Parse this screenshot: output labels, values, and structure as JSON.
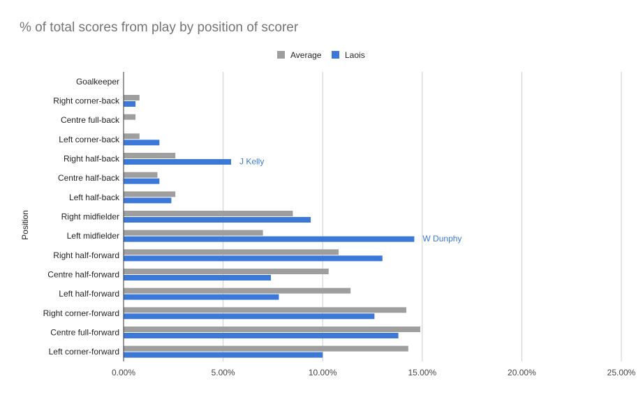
{
  "chart_data": {
    "type": "bar",
    "orientation": "horizontal",
    "title": "% of total scores from play by position of scorer",
    "ylabel": "Position",
    "xlabel": "",
    "xlim": [
      0,
      25
    ],
    "xticks": [
      0,
      5,
      10,
      15,
      20,
      25
    ],
    "xtick_labels": [
      "0.00%",
      "5.00%",
      "10.00%",
      "15.00%",
      "20.00%",
      "25.00%"
    ],
    "grid": true,
    "legend_position": "top",
    "categories": [
      "Goalkeeper",
      "Right corner-back",
      "Centre full-back",
      "Left corner-back",
      "Right half-back",
      "Centre half-back",
      "Left half-back",
      "Right midfielder",
      "Left midfielder",
      "Right half-forward",
      "Centre half-forward",
      "Left half-forward",
      "Right corner-forward",
      "Centre full-forward",
      "Left corner-forward"
    ],
    "series": [
      {
        "name": "Average",
        "color": "#9e9e9e",
        "values": [
          0,
          0.8,
          0.6,
          0.8,
          2.6,
          1.7,
          2.6,
          8.5,
          7.0,
          10.8,
          10.3,
          11.4,
          14.2,
          14.9,
          14.3
        ]
      },
      {
        "name": "Laois",
        "color": "#3c78d8",
        "values": [
          0,
          0.6,
          0,
          1.8,
          5.4,
          1.8,
          2.4,
          9.4,
          14.6,
          13.0,
          7.4,
          7.8,
          12.6,
          13.8,
          10.0
        ]
      }
    ],
    "annotations": [
      {
        "text": "J Kelly",
        "category": "Right half-back",
        "series": "Laois",
        "color": "#3c78d8"
      },
      {
        "text": "W Dunphy",
        "category": "Left midfielder",
        "series": "Laois",
        "color": "#3c78d8"
      }
    ]
  }
}
